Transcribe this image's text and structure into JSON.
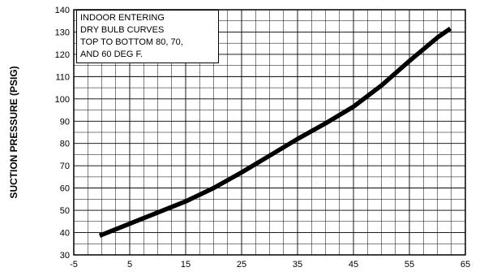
{
  "chart_data": {
    "type": "line",
    "title": "",
    "xlabel": "",
    "ylabel": "SUCTION PRESSURE (PSIG)",
    "xlim": [
      -5,
      65
    ],
    "ylim": [
      30,
      140
    ],
    "x_ticks": [
      -5,
      5,
      15,
      25,
      35,
      45,
      55,
      65
    ],
    "y_ticks": [
      30,
      40,
      50,
      60,
      70,
      80,
      90,
      100,
      110,
      120,
      130,
      140
    ],
    "grid": true,
    "annotation_lines": [
      "INDOOR ENTERING",
      "DRY BULB CURVES",
      "TOP TO BOTTOM 80, 70,",
      "AND 60 DEG F."
    ],
    "legend_position": "top-left",
    "line_color": "#000000",
    "series": [
      {
        "x": [
          0,
          5,
          10,
          15,
          20,
          25,
          30,
          35,
          40,
          45,
          50,
          55,
          60,
          62
        ],
        "y": [
          39,
          44,
          49,
          54,
          60,
          67,
          74.5,
          82,
          89,
          96.5,
          106,
          117,
          127.5,
          131
        ]
      }
    ]
  }
}
